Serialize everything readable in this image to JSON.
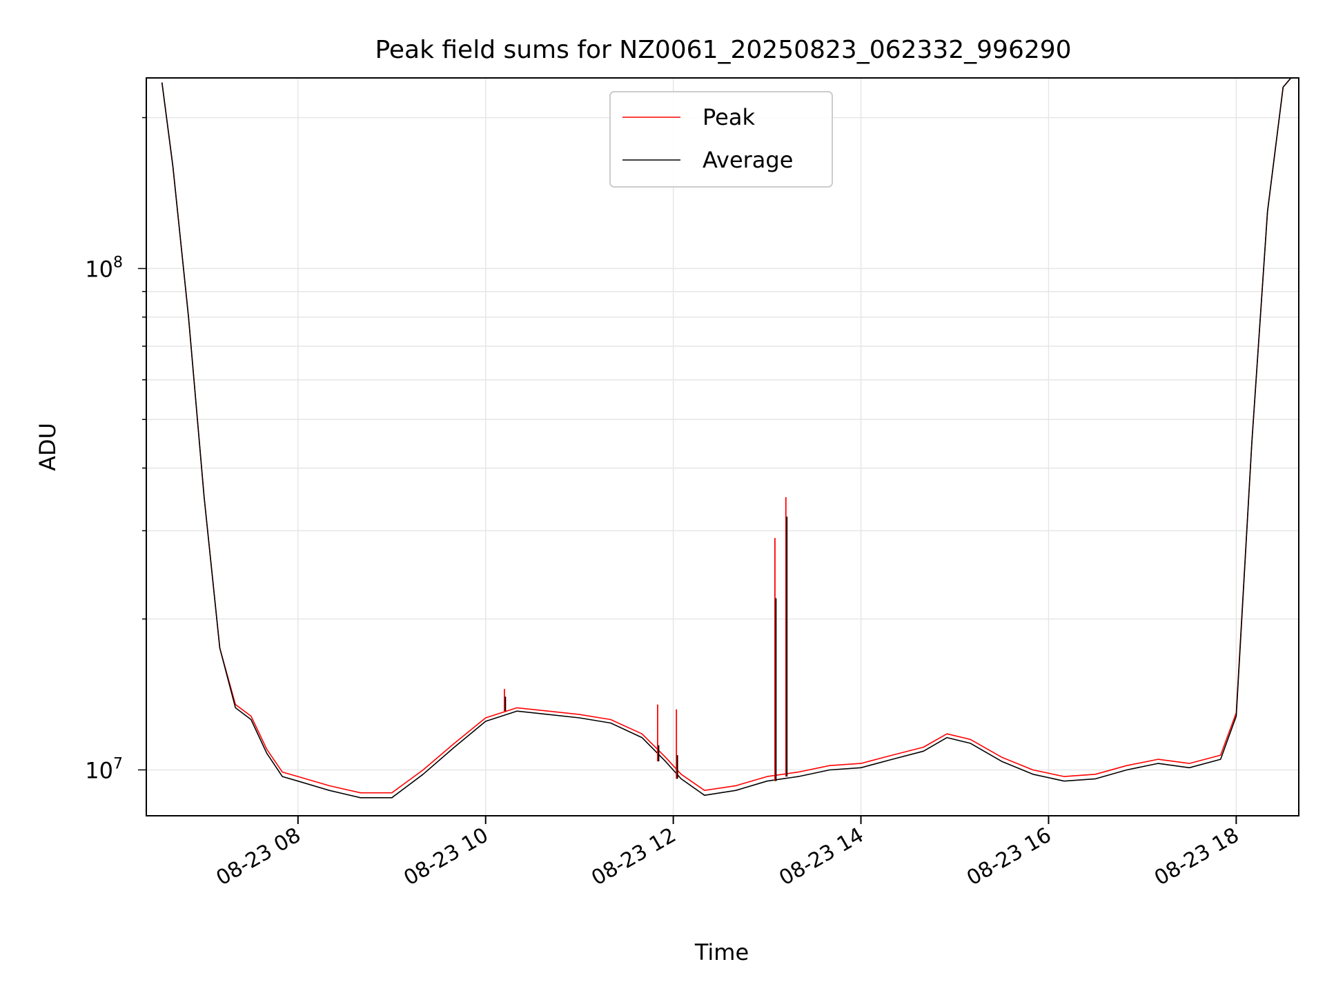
{
  "chart_data": {
    "type": "line",
    "title": "Peak field sums for NZ0061_20250823_062332_996290",
    "xlabel": "Time",
    "ylabel": "ADU",
    "y_scale": "log",
    "grid": true,
    "legend_position": "top-center",
    "xlim": [
      "2025-08-23 06:23",
      "2025-08-23 18:40"
    ],
    "ylim": [
      8100000,
      240000000
    ],
    "x_ticks": [
      "2025-08-23 08:00",
      "2025-08-23 10:00",
      "2025-08-23 12:00",
      "2025-08-23 14:00",
      "2025-08-23 16:00",
      "2025-08-23 18:00"
    ],
    "x_tick_labels": [
      "08-23 08",
      "08-23 10",
      "08-23 12",
      "08-23 14",
      "08-23 16",
      "08-23 18"
    ],
    "y_ticks": [
      10000000,
      100000000
    ],
    "y_tick_labels": [
      {
        "base": "10",
        "exp": "7"
      },
      {
        "base": "10",
        "exp": "8"
      }
    ],
    "x": [
      "2025-08-23 06:33",
      "2025-08-23 06:40",
      "2025-08-23 06:50",
      "2025-08-23 07:00",
      "2025-08-23 07:10",
      "2025-08-23 07:20",
      "2025-08-23 07:30",
      "2025-08-23 07:40",
      "2025-08-23 07:50",
      "2025-08-23 08:00",
      "2025-08-23 08:20",
      "2025-08-23 08:40",
      "2025-08-23 09:00",
      "2025-08-23 09:20",
      "2025-08-23 09:40",
      "2025-08-23 10:00",
      "2025-08-23 10:20",
      "2025-08-23 10:40",
      "2025-08-23 11:00",
      "2025-08-23 11:20",
      "2025-08-23 11:40",
      "2025-08-23 11:55",
      "2025-08-23 12:05",
      "2025-08-23 12:20",
      "2025-08-23 12:40",
      "2025-08-23 13:00",
      "2025-08-23 13:20",
      "2025-08-23 13:40",
      "2025-08-23 14:00",
      "2025-08-23 14:20",
      "2025-08-23 14:40",
      "2025-08-23 14:55",
      "2025-08-23 15:10",
      "2025-08-23 15:30",
      "2025-08-23 15:50",
      "2025-08-23 16:10",
      "2025-08-23 16:30",
      "2025-08-23 16:50",
      "2025-08-23 17:10",
      "2025-08-23 17:30",
      "2025-08-23 17:50",
      "2025-08-23 18:00",
      "2025-08-23 18:10",
      "2025-08-23 18:20",
      "2025-08-23 18:30",
      "2025-08-23 18:35"
    ],
    "series": [
      {
        "name": "Peak",
        "color": "#ff0000",
        "values": [
          235000000,
          160000000,
          80000000,
          35000000,
          17500000,
          13500000,
          12800000,
          11000000,
          9900000,
          9700000,
          9300000,
          9000000,
          9000000,
          10000000,
          11300000,
          12700000,
          13300000,
          13100000,
          12900000,
          12600000,
          11800000,
          10600000,
          9800000,
          9100000,
          9300000,
          9700000,
          9900000,
          10200000,
          10300000,
          10700000,
          11100000,
          11800000,
          11500000,
          10600000,
          10000000,
          9700000,
          9800000,
          10200000,
          10500000,
          10300000,
          10700000,
          13000000,
          45000000,
          130000000,
          230000000,
          240000000
        ]
      },
      {
        "name": "Average",
        "color": "#000000",
        "values": [
          235000000,
          160000000,
          80000000,
          35000000,
          17500000,
          13300000,
          12600000,
          10800000,
          9700000,
          9500000,
          9100000,
          8800000,
          8800000,
          9800000,
          11100000,
          12500000,
          13100000,
          12900000,
          12700000,
          12400000,
          11600000,
          10400000,
          9600000,
          8900000,
          9100000,
          9500000,
          9700000,
          10000000,
          10100000,
          10500000,
          10900000,
          11600000,
          11300000,
          10400000,
          9800000,
          9500000,
          9600000,
          10000000,
          10300000,
          10100000,
          10500000,
          12800000,
          45000000,
          130000000,
          230000000,
          240000000
        ]
      }
    ],
    "spikes": [
      {
        "x": "2025-08-23 13:05",
        "peak": 29000000,
        "average": 22000000
      },
      {
        "x": "2025-08-23 13:12",
        "peak": 35000000,
        "average": 32000000
      },
      {
        "x": "2025-08-23 10:12",
        "peak": 14500000,
        "average": 14000000
      },
      {
        "x": "2025-08-23 11:50",
        "peak": 13500000,
        "average": 11200000
      },
      {
        "x": "2025-08-23 12:02",
        "peak": 13200000,
        "average": 10700000
      }
    ]
  }
}
